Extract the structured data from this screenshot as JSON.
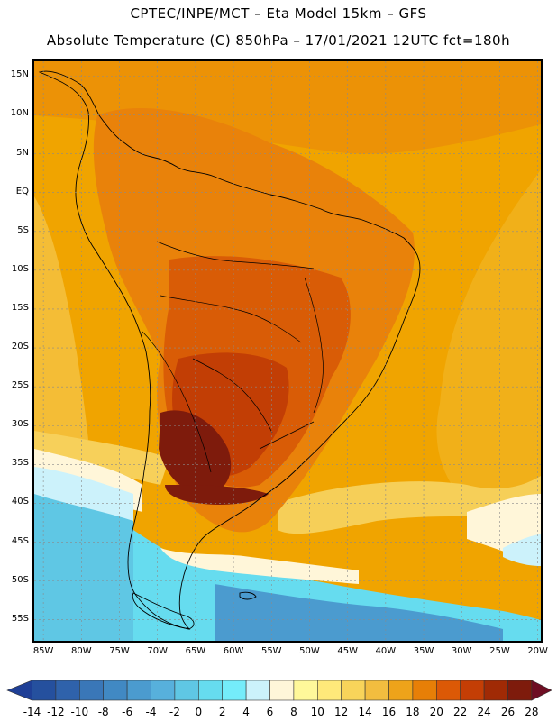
{
  "header": {
    "line1": "CPTEC/INPE/MCT –  Eta Model 15km – GFS",
    "line2": "Absolute Temperature (C) 850hPa – 17/01/2021 12UTC fct=180h"
  },
  "map": {
    "region": "South America",
    "variable": "Absolute Temperature (C) 850hPa",
    "lat_labels": [
      "15N",
      "10N",
      "5N",
      "EQ",
      "5S",
      "10S",
      "15S",
      "20S",
      "25S",
      "30S",
      "35S",
      "40S",
      "45S",
      "50S",
      "55S"
    ],
    "lat_values": [
      15,
      10,
      5,
      0,
      -5,
      -10,
      -15,
      -20,
      -25,
      -30,
      -35,
      -40,
      -45,
      -50,
      -55
    ],
    "lon_labels": [
      "85W",
      "80W",
      "75W",
      "70W",
      "65W",
      "60W",
      "55W",
      "50W",
      "45W",
      "40W",
      "35W",
      "30W",
      "25W",
      "20W"
    ],
    "lon_values": [
      -85,
      -80,
      -75,
      -70,
      -65,
      -60,
      -55,
      -50,
      -45,
      -40,
      -35,
      -30,
      -25,
      -20
    ],
    "lat_range": [
      -57.7,
      16.9
    ],
    "lon_range": [
      -86.2,
      -19.6
    ]
  },
  "colorbar": {
    "labels": [
      "-14",
      "-12",
      "-10",
      "-8",
      "-6",
      "-4",
      "-2",
      "0",
      "2",
      "4",
      "6",
      "8",
      "10",
      "12",
      "14",
      "16",
      "18",
      "20",
      "22",
      "24",
      "26",
      "28"
    ],
    "colors": [
      "#1f3f96",
      "#25509e",
      "#2f62ab",
      "#3a77b8",
      "#4189c3",
      "#4b9bcf",
      "#57b0dc",
      "#5fc7e4",
      "#66dcef",
      "#74ecfa",
      "#ccf2fb",
      "#fff6d9",
      "#fff89a",
      "#ffe97a",
      "#f8d45a",
      "#f2bd3f",
      "#eea31a",
      "#e77f07",
      "#dc5906",
      "#c43e05",
      "#a02a05",
      "#7e1b0c",
      "#6e0e23"
    ]
  }
}
